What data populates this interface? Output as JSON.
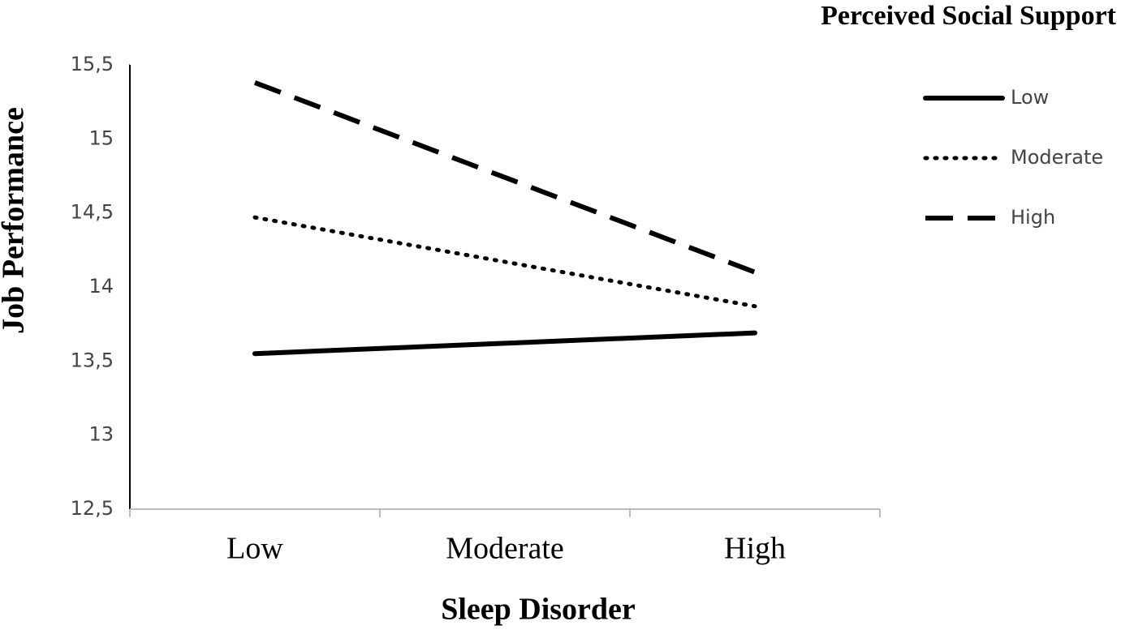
{
  "chart_data": {
    "type": "line",
    "legend_title": "Perceived Social Support",
    "x_label": "Sleep Disorder",
    "y_label": "Job Performance",
    "categories": [
      "Low",
      "Moderate",
      "High"
    ],
    "series": [
      {
        "name": "Low",
        "color": "#000000",
        "style": "solid",
        "values": [
          13.55,
          13.62,
          13.69
        ]
      },
      {
        "name": "Moderate",
        "color": "#000000",
        "style": "dotted",
        "values": [
          14.47,
          14.17,
          13.87
        ]
      },
      {
        "name": "High",
        "color": "#000000",
        "style": "dashed",
        "values": [
          15.38,
          14.74,
          14.1
        ]
      }
    ],
    "ylim": [
      12.5,
      15.5
    ],
    "yticks": [
      {
        "value": 12.5,
        "label": "12,5"
      },
      13,
      {
        "value": 13.5,
        "label": "13,5"
      },
      14,
      {
        "value": 14.5,
        "label": "14,5"
      },
      15,
      {
        "value": 15.5,
        "label": "15,5"
      }
    ],
    "legend": "right"
  }
}
